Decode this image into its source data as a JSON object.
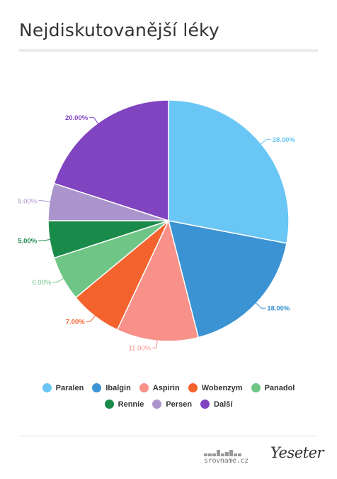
{
  "header": {
    "title": "Nejdiskutovanější léky"
  },
  "chart_data": {
    "type": "pie",
    "title": "Nejdiskutovanější léky",
    "unit": "%",
    "categories": [
      "Paralen",
      "Ibalgin",
      "Aspirin",
      "Wobenzym",
      "Panadol",
      "Rennie",
      "Persen",
      "Další"
    ],
    "values": [
      28,
      18,
      11,
      7,
      6,
      5,
      5,
      20
    ],
    "labels": [
      "28.00%",
      "18.00%",
      "11.00%",
      "7.00%",
      "6.00%",
      "5.00%",
      "5.00%",
      "20.00%"
    ],
    "colors": [
      "#6ac6f5",
      "#3b93d3",
      "#f7918a",
      "#f4622e",
      "#6fc586",
      "#198a4a",
      "#ab94cc",
      "#8044c0"
    ],
    "legend_position": "bottom"
  },
  "footer": {
    "logo_left": "srovname.cz",
    "logo_right": "Yeseter"
  }
}
